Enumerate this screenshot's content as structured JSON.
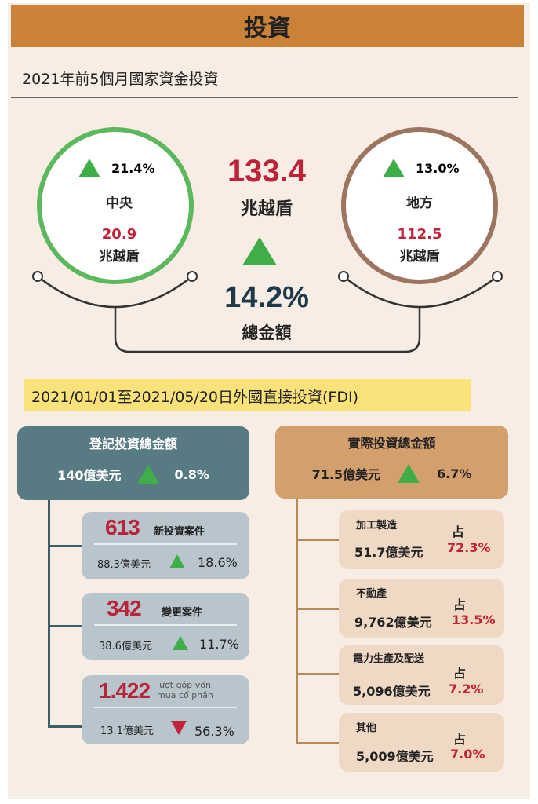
{
  "title": "投資",
  "subtitle": "2021年前5個月國家資金投資",
  "total": {
    "value": "133.4",
    "unit": "兆越盾",
    "change": "14.2%",
    "label": "總金額",
    "trend": "up"
  },
  "central": {
    "label": "中央",
    "change": "21.4%",
    "value": "20.9",
    "unit": "兆越盾",
    "trend": "up"
  },
  "local": {
    "label": "地方",
    "change": "13.0%",
    "value": "112.5",
    "unit": "兆越盾",
    "trend": "up"
  },
  "fdi": {
    "heading": "2021/01/01至2021/05/20日外國直接投資(FDI)",
    "registered": {
      "label": "登記投資總金額",
      "amount": "140億美元",
      "change": "0.8%",
      "trend": "up",
      "items": [
        {
          "count": "613",
          "label": "新投資案件",
          "amount": "88.3億美元",
          "change": "18.6%",
          "trend": "up"
        },
        {
          "count": "342",
          "label": "變更案件",
          "amount": "38.6億美元",
          "change": "11.7%",
          "trend": "up"
        },
        {
          "count": "1.422",
          "label": "lượt góp vốn mua cổ phần",
          "amount": "13.1億美元",
          "change": "56.3%",
          "trend": "down"
        }
      ]
    },
    "actual": {
      "label": "實際投資總金額",
      "amount": "71.5億美元",
      "change": "6.7%",
      "trend": "up",
      "share_label": "占",
      "items": [
        {
          "label": "加工製造",
          "amount": "51.7億美元",
          "share": "72.3%"
        },
        {
          "label": "不動產",
          "amount": "9,762億美元",
          "share": "13.5%"
        },
        {
          "label": "電力生產及配送",
          "amount": "5,096億美元",
          "share": "7.2%"
        },
        {
          "label": "其他",
          "amount": "5,009億美元",
          "share": "7.0%"
        }
      ]
    }
  },
  "colors": {
    "header": "#c98237",
    "up": "#3fae49",
    "down": "#c0223a",
    "central_ring": "#5cb85c",
    "local_ring": "#9c7460"
  }
}
